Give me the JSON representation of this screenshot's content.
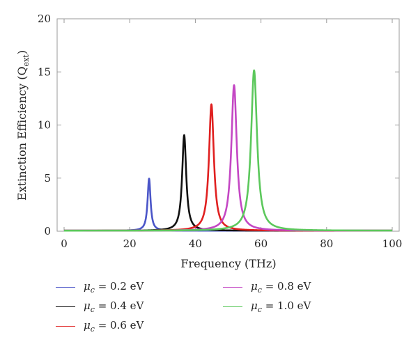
{
  "chart_data": {
    "type": "line",
    "title": "",
    "xlabel": "Frequency (THz)",
    "ylabel": {
      "base": "Extinction Efficiency (Q",
      "subscript": "ext",
      "close": ")"
    },
    "xlim": [
      0,
      100
    ],
    "ylim": [
      0,
      20
    ],
    "xticks": [
      0,
      20,
      40,
      60,
      80,
      100
    ],
    "yticks": [
      0,
      5,
      10,
      15,
      20
    ],
    "grid": false,
    "legend_position": "bottom",
    "series": [
      {
        "name": "μc = 0.2 eV",
        "symbol": "μ",
        "sub": "c",
        "value": " = 0.2 eV",
        "color": "#4a55c8",
        "peak_x": 25.9,
        "peak_y": 4.9,
        "width": 0.55
      },
      {
        "name": "μc = 0.4 eV",
        "symbol": "μ",
        "sub": "c",
        "value": " = 0.4 eV",
        "color": "#111111",
        "peak_x": 36.6,
        "peak_y": 9.0,
        "width": 0.75
      },
      {
        "name": "μc = 0.6 eV",
        "symbol": "μ",
        "sub": "c",
        "value": " = 0.6 eV",
        "color": "#e02020",
        "peak_x": 44.9,
        "peak_y": 11.9,
        "width": 0.9
      },
      {
        "name": "μc = 0.8 eV",
        "symbol": "μ",
        "sub": "c",
        "value": " = 0.8 eV",
        "color": "#c447c4",
        "peak_x": 51.8,
        "peak_y": 13.7,
        "width": 1.0
      },
      {
        "name": "μc = 1.0 eV",
        "symbol": "μ",
        "sub": "c",
        "value": " = 1.0 eV",
        "color": "#5cc85c",
        "peak_x": 57.9,
        "peak_y": 15.1,
        "width": 1.1
      }
    ]
  }
}
